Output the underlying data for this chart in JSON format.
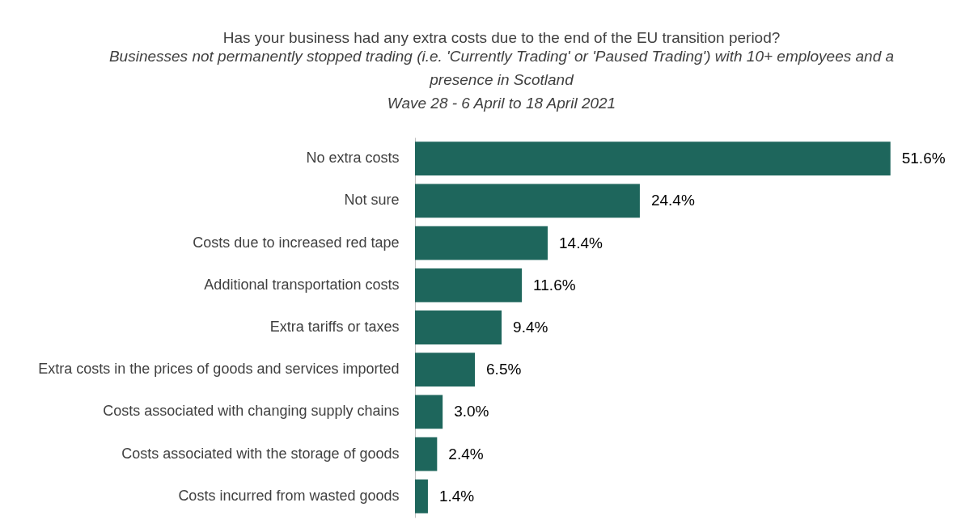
{
  "chart_data": {
    "type": "bar",
    "orientation": "horizontal",
    "title": "Has your business had any extra costs due to the end of the EU transition period?",
    "subtitle": "Businesses not permanently stopped trading (i.e. 'Currently Trading' or 'Paused Trading') with 10+ employees and a presence in Scotland\nWave 28 - 6 April to 18 April 2021",
    "categories": [
      "No extra costs",
      "Not sure",
      "Costs due to increased red tape",
      "Additional transportation costs",
      "Extra tariffs or taxes",
      "Extra costs in the prices of goods and services imported",
      "Costs associated with changing supply chains",
      "Costs associated with the storage of goods",
      "Costs incurred from wasted goods"
    ],
    "values": [
      51.6,
      24.4,
      14.4,
      11.6,
      9.4,
      6.5,
      3.0,
      2.4,
      1.4
    ],
    "value_labels": [
      "51.6%",
      "24.4%",
      "14.4%",
      "11.6%",
      "9.4%",
      "6.5%",
      "3.0%",
      "2.4%",
      "1.4%"
    ],
    "color": "#1e665c"
  }
}
